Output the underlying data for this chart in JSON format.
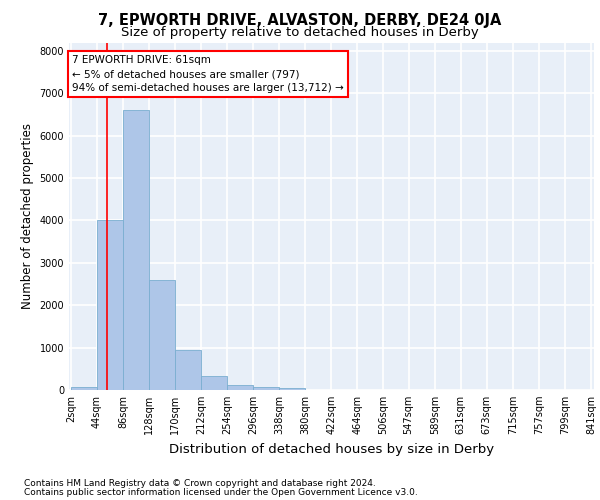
{
  "title": "7, EPWORTH DRIVE, ALVASTON, DERBY, DE24 0JA",
  "subtitle": "Size of property relative to detached houses in Derby",
  "xlabel": "Distribution of detached houses by size in Derby",
  "ylabel": "Number of detached properties",
  "footnote1": "Contains HM Land Registry data © Crown copyright and database right 2024.",
  "footnote2": "Contains public sector information licensed under the Open Government Licence v3.0.",
  "annotation_line1": "7 EPWORTH DRIVE: 61sqm",
  "annotation_line2": "← 5% of detached houses are smaller (797)",
  "annotation_line3": "94% of semi-detached houses are larger (13,712) →",
  "bar_color": "#aec6e8",
  "bar_edge_color": "#7aaed0",
  "red_line_x": 61,
  "bin_edges": [
    2,
    44,
    86,
    128,
    170,
    212,
    254,
    296,
    338,
    380,
    422,
    464,
    506,
    547,
    589,
    631,
    673,
    715,
    757,
    799,
    841
  ],
  "bar_heights": [
    80,
    4000,
    6600,
    2600,
    950,
    330,
    110,
    70,
    50,
    10,
    0,
    0,
    0,
    0,
    0,
    0,
    0,
    0,
    0,
    0
  ],
  "ylim": [
    0,
    8200
  ],
  "yticks": [
    0,
    1000,
    2000,
    3000,
    4000,
    5000,
    6000,
    7000,
    8000
  ],
  "background_color": "#e8eff8",
  "grid_color": "#ffffff",
  "title_fontsize": 10.5,
  "subtitle_fontsize": 9.5,
  "axis_label_fontsize": 8.5,
  "tick_fontsize": 7,
  "annotation_fontsize": 7.5,
  "footnote_fontsize": 6.5
}
